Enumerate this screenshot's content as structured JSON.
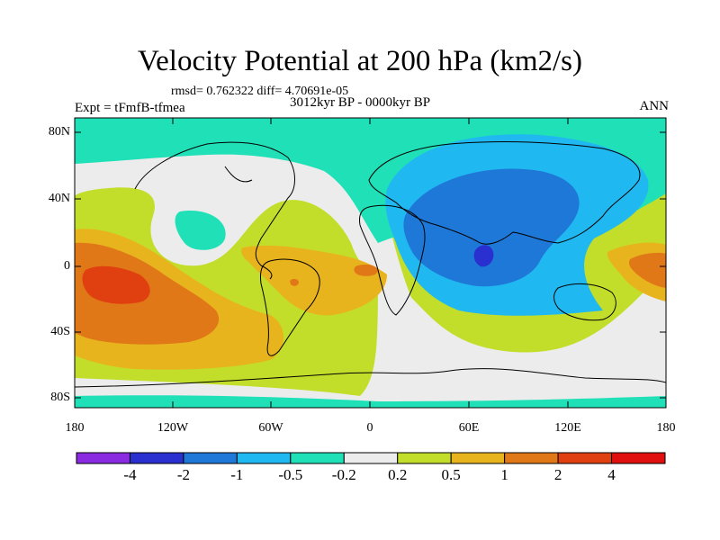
{
  "figure": {
    "title": "Velocity Potential at 200 hPa (km2/s)",
    "stats": "rmsd= 0.762322  diff= 4.70691e-05",
    "experiment": "Expt = tFmfB-tfmea",
    "period": "3012kyr BP - 0000kyr BP",
    "season": "ANN"
  },
  "axes": {
    "lat_labels": [
      "80N",
      "40N",
      "0",
      "40S",
      "80S"
    ],
    "lon_labels": [
      "180",
      "120W",
      "60W",
      "0",
      "60E",
      "120E",
      "180"
    ]
  },
  "colorbar": {
    "colors": [
      "#8a2be2",
      "#2a2fd0",
      "#1e78d8",
      "#20b8f0",
      "#20e0b8",
      "#ececec",
      "#c2de2a",
      "#e8b41e",
      "#e07818",
      "#e04010",
      "#e01010"
    ],
    "labels": [
      "-4",
      "-2",
      "-1",
      "-0.5",
      "-0.2",
      "0.2",
      "0.5",
      "1",
      "2",
      "4"
    ]
  },
  "map_colors": {
    "cyan": "#20e0b8",
    "white": "#ececec",
    "green": "#c2de2a",
    "yellow": "#e8b41e",
    "orange": "#e07818",
    "red": "#e04010",
    "lightblue": "#20b8f0",
    "blue": "#1e78d8",
    "darkblue": "#2a2fd0"
  }
}
